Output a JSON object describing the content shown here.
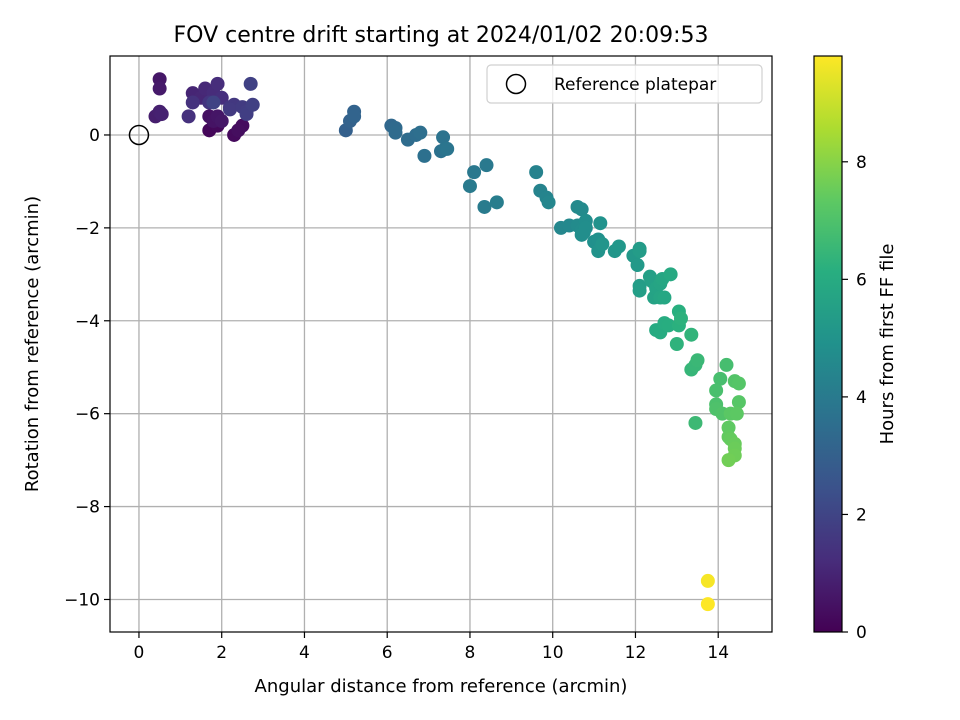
{
  "chart_data": {
    "type": "scatter",
    "title": "FOV centre drift starting at 2024/01/02 20:09:53",
    "xlabel": "Angular distance from reference (arcmin)",
    "ylabel": "Rotation from reference (arcmin)",
    "xlim": [
      -0.7,
      15.3
    ],
    "ylim": [
      -10.7,
      1.7
    ],
    "xticks": [
      0,
      2,
      4,
      6,
      8,
      10,
      12,
      14
    ],
    "yticks": [
      0,
      -2,
      -4,
      -6,
      -8,
      -10
    ],
    "xtick_labels": [
      "0",
      "2",
      "4",
      "6",
      "8",
      "10",
      "12",
      "14"
    ],
    "ytick_labels": [
      "0",
      "−2",
      "−4",
      "−6",
      "−8",
      "−10"
    ],
    "grid": true,
    "legend": {
      "position": "top-right",
      "entries": [
        "Reference platepar"
      ]
    },
    "reference_point": {
      "x": 0,
      "y": 0
    },
    "colorbar": {
      "label": "Hours from first FF file",
      "colormap": "viridis",
      "range": [
        0,
        9.8
      ],
      "ticks": [
        0,
        2,
        4,
        6,
        8
      ],
      "tick_labels": [
        "0",
        "2",
        "4",
        "6",
        "8"
      ]
    },
    "points": [
      {
        "x": 1.7,
        "y": 0.1,
        "h": 0.15
      },
      {
        "x": 1.9,
        "y": 0.2,
        "h": 0.2
      },
      {
        "x": 2.3,
        "y": 0.0,
        "h": 0.25
      },
      {
        "x": 2.5,
        "y": 0.2,
        "h": 0.3
      },
      {
        "x": 2.4,
        "y": 0.1,
        "h": 0.35
      },
      {
        "x": 1.7,
        "y": 0.4,
        "h": 0.45
      },
      {
        "x": 1.8,
        "y": 0.3,
        "h": 0.5
      },
      {
        "x": 1.9,
        "y": 0.4,
        "h": 0.55
      },
      {
        "x": 2.0,
        "y": 0.3,
        "h": 0.6
      },
      {
        "x": 0.5,
        "y": 1.2,
        "h": 0.6
      },
      {
        "x": 0.5,
        "y": 1.0,
        "h": 0.7
      },
      {
        "x": 0.4,
        "y": 0.4,
        "h": 0.8
      },
      {
        "x": 0.5,
        "y": 0.5,
        "h": 0.85
      },
      {
        "x": 0.55,
        "y": 0.45,
        "h": 0.9
      },
      {
        "x": 1.3,
        "y": 0.9,
        "h": 1.0
      },
      {
        "x": 1.5,
        "y": 0.8,
        "h": 1.05
      },
      {
        "x": 1.6,
        "y": 1.0,
        "h": 1.1
      },
      {
        "x": 1.7,
        "y": 0.7,
        "h": 1.15
      },
      {
        "x": 1.8,
        "y": 0.9,
        "h": 1.2
      },
      {
        "x": 1.9,
        "y": 1.1,
        "h": 1.25
      },
      {
        "x": 2.0,
        "y": 0.8,
        "h": 1.3
      },
      {
        "x": 1.2,
        "y": 0.4,
        "h": 1.35
      },
      {
        "x": 1.3,
        "y": 0.7,
        "h": 1.4
      },
      {
        "x": 1.7,
        "y": 0.7,
        "h": 1.5
      },
      {
        "x": 2.2,
        "y": 0.6,
        "h": 1.55
      },
      {
        "x": 2.3,
        "y": 0.65,
        "h": 1.6
      },
      {
        "x": 2.2,
        "y": 0.55,
        "h": 1.65
      },
      {
        "x": 2.5,
        "y": 0.6,
        "h": 1.7
      },
      {
        "x": 2.6,
        "y": 0.5,
        "h": 1.75
      },
      {
        "x": 2.6,
        "y": 0.45,
        "h": 1.8
      },
      {
        "x": 2.75,
        "y": 0.65,
        "h": 1.85
      },
      {
        "x": 2.7,
        "y": 1.1,
        "h": 1.9
      },
      {
        "x": 1.8,
        "y": 0.7,
        "h": 1.95
      },
      {
        "x": 5.0,
        "y": 0.1,
        "h": 3.0
      },
      {
        "x": 5.1,
        "y": 0.3,
        "h": 3.05
      },
      {
        "x": 5.2,
        "y": 0.5,
        "h": 3.1
      },
      {
        "x": 5.2,
        "y": 0.4,
        "h": 3.15
      },
      {
        "x": 6.1,
        "y": 0.2,
        "h": 3.3
      },
      {
        "x": 6.2,
        "y": 0.15,
        "h": 3.35
      },
      {
        "x": 6.2,
        "y": 0.05,
        "h": 3.4
      },
      {
        "x": 6.5,
        "y": -0.1,
        "h": 3.45
      },
      {
        "x": 6.7,
        "y": 0.0,
        "h": 3.5
      },
      {
        "x": 6.8,
        "y": 0.05,
        "h": 3.55
      },
      {
        "x": 6.9,
        "y": -0.45,
        "h": 3.6
      },
      {
        "x": 7.3,
        "y": -0.35,
        "h": 3.65
      },
      {
        "x": 7.35,
        "y": -0.05,
        "h": 3.7
      },
      {
        "x": 7.4,
        "y": -0.3,
        "h": 3.75
      },
      {
        "x": 7.45,
        "y": -0.3,
        "h": 3.8
      },
      {
        "x": 8.1,
        "y": -0.8,
        "h": 3.9
      },
      {
        "x": 8.4,
        "y": -0.65,
        "h": 3.95
      },
      {
        "x": 8.0,
        "y": -1.1,
        "h": 4.0
      },
      {
        "x": 8.35,
        "y": -1.55,
        "h": 4.05
      },
      {
        "x": 8.65,
        "y": -1.45,
        "h": 4.1
      },
      {
        "x": 9.6,
        "y": -0.8,
        "h": 4.3
      },
      {
        "x": 9.7,
        "y": -1.2,
        "h": 4.35
      },
      {
        "x": 9.85,
        "y": -1.35,
        "h": 4.4
      },
      {
        "x": 9.9,
        "y": -1.45,
        "h": 4.45
      },
      {
        "x": 10.2,
        "y": -2.0,
        "h": 4.5
      },
      {
        "x": 10.4,
        "y": -1.95,
        "h": 4.55
      },
      {
        "x": 10.6,
        "y": -1.55,
        "h": 4.6
      },
      {
        "x": 10.7,
        "y": -1.6,
        "h": 4.62
      },
      {
        "x": 10.6,
        "y": -1.95,
        "h": 4.65
      },
      {
        "x": 10.7,
        "y": -2.05,
        "h": 4.7
      },
      {
        "x": 10.75,
        "y": -2.1,
        "h": 4.72
      },
      {
        "x": 10.8,
        "y": -1.85,
        "h": 4.75
      },
      {
        "x": 10.8,
        "y": -2.0,
        "h": 4.78
      },
      {
        "x": 10.7,
        "y": -2.15,
        "h": 4.8
      },
      {
        "x": 11.0,
        "y": -2.3,
        "h": 4.85
      },
      {
        "x": 11.1,
        "y": -2.25,
        "h": 4.9
      },
      {
        "x": 11.15,
        "y": -1.9,
        "h": 4.95
      },
      {
        "x": 11.1,
        "y": -2.5,
        "h": 5.0
      },
      {
        "x": 11.2,
        "y": -2.35,
        "h": 5.05
      },
      {
        "x": 11.5,
        "y": -2.5,
        "h": 5.1
      },
      {
        "x": 11.6,
        "y": -2.4,
        "h": 5.15
      },
      {
        "x": 11.95,
        "y": -2.6,
        "h": 5.2
      },
      {
        "x": 12.05,
        "y": -2.8,
        "h": 5.25
      },
      {
        "x": 12.1,
        "y": -2.45,
        "h": 5.3
      },
      {
        "x": 12.1,
        "y": -2.5,
        "h": 5.35
      },
      {
        "x": 12.1,
        "y": -3.25,
        "h": 5.4
      },
      {
        "x": 12.1,
        "y": -3.35,
        "h": 5.45
      },
      {
        "x": 12.35,
        "y": -3.05,
        "h": 5.5
      },
      {
        "x": 12.4,
        "y": -3.15,
        "h": 5.55
      },
      {
        "x": 12.45,
        "y": -3.5,
        "h": 5.6
      },
      {
        "x": 12.5,
        "y": -3.3,
        "h": 5.65
      },
      {
        "x": 12.6,
        "y": -3.2,
        "h": 5.7
      },
      {
        "x": 12.6,
        "y": -3.5,
        "h": 5.75
      },
      {
        "x": 12.65,
        "y": -3.1,
        "h": 5.8
      },
      {
        "x": 12.7,
        "y": -3.5,
        "h": 5.85
      },
      {
        "x": 12.85,
        "y": -3.0,
        "h": 5.9
      },
      {
        "x": 12.5,
        "y": -4.2,
        "h": 5.95
      },
      {
        "x": 12.6,
        "y": -4.25,
        "h": 6.0
      },
      {
        "x": 12.7,
        "y": -4.05,
        "h": 6.05
      },
      {
        "x": 12.8,
        "y": -4.1,
        "h": 6.1
      },
      {
        "x": 13.05,
        "y": -3.8,
        "h": 6.15
      },
      {
        "x": 13.05,
        "y": -4.1,
        "h": 6.2
      },
      {
        "x": 13.1,
        "y": -3.95,
        "h": 6.25
      },
      {
        "x": 13.0,
        "y": -4.5,
        "h": 6.3
      },
      {
        "x": 13.35,
        "y": -4.3,
        "h": 6.35
      },
      {
        "x": 13.35,
        "y": -5.05,
        "h": 6.45
      },
      {
        "x": 13.45,
        "y": -4.95,
        "h": 6.5
      },
      {
        "x": 13.5,
        "y": -4.85,
        "h": 6.55
      },
      {
        "x": 13.45,
        "y": -6.2,
        "h": 6.6
      },
      {
        "x": 14.2,
        "y": -4.95,
        "h": 6.8
      },
      {
        "x": 14.05,
        "y": -5.25,
        "h": 6.85
      },
      {
        "x": 13.95,
        "y": -5.5,
        "h": 6.9
      },
      {
        "x": 13.95,
        "y": -5.8,
        "h": 6.95
      },
      {
        "x": 13.95,
        "y": -5.9,
        "h": 7.0
      },
      {
        "x": 14.1,
        "y": -6.0,
        "h": 7.05
      },
      {
        "x": 14.4,
        "y": -5.3,
        "h": 7.1
      },
      {
        "x": 14.5,
        "y": -5.35,
        "h": 7.15
      },
      {
        "x": 14.5,
        "y": -5.75,
        "h": 7.2
      },
      {
        "x": 14.3,
        "y": -6.0,
        "h": 7.25
      },
      {
        "x": 14.45,
        "y": -6.0,
        "h": 7.3
      },
      {
        "x": 14.25,
        "y": -6.3,
        "h": 7.35
      },
      {
        "x": 14.25,
        "y": -6.5,
        "h": 7.4
      },
      {
        "x": 14.3,
        "y": -6.55,
        "h": 7.45
      },
      {
        "x": 14.4,
        "y": -6.65,
        "h": 7.5
      },
      {
        "x": 14.4,
        "y": -6.75,
        "h": 7.55
      },
      {
        "x": 14.4,
        "y": -6.9,
        "h": 7.6
      },
      {
        "x": 14.25,
        "y": -7.0,
        "h": 7.65
      },
      {
        "x": 13.75,
        "y": -9.6,
        "h": 9.7
      },
      {
        "x": 13.75,
        "y": -10.1,
        "h": 9.8
      }
    ]
  }
}
